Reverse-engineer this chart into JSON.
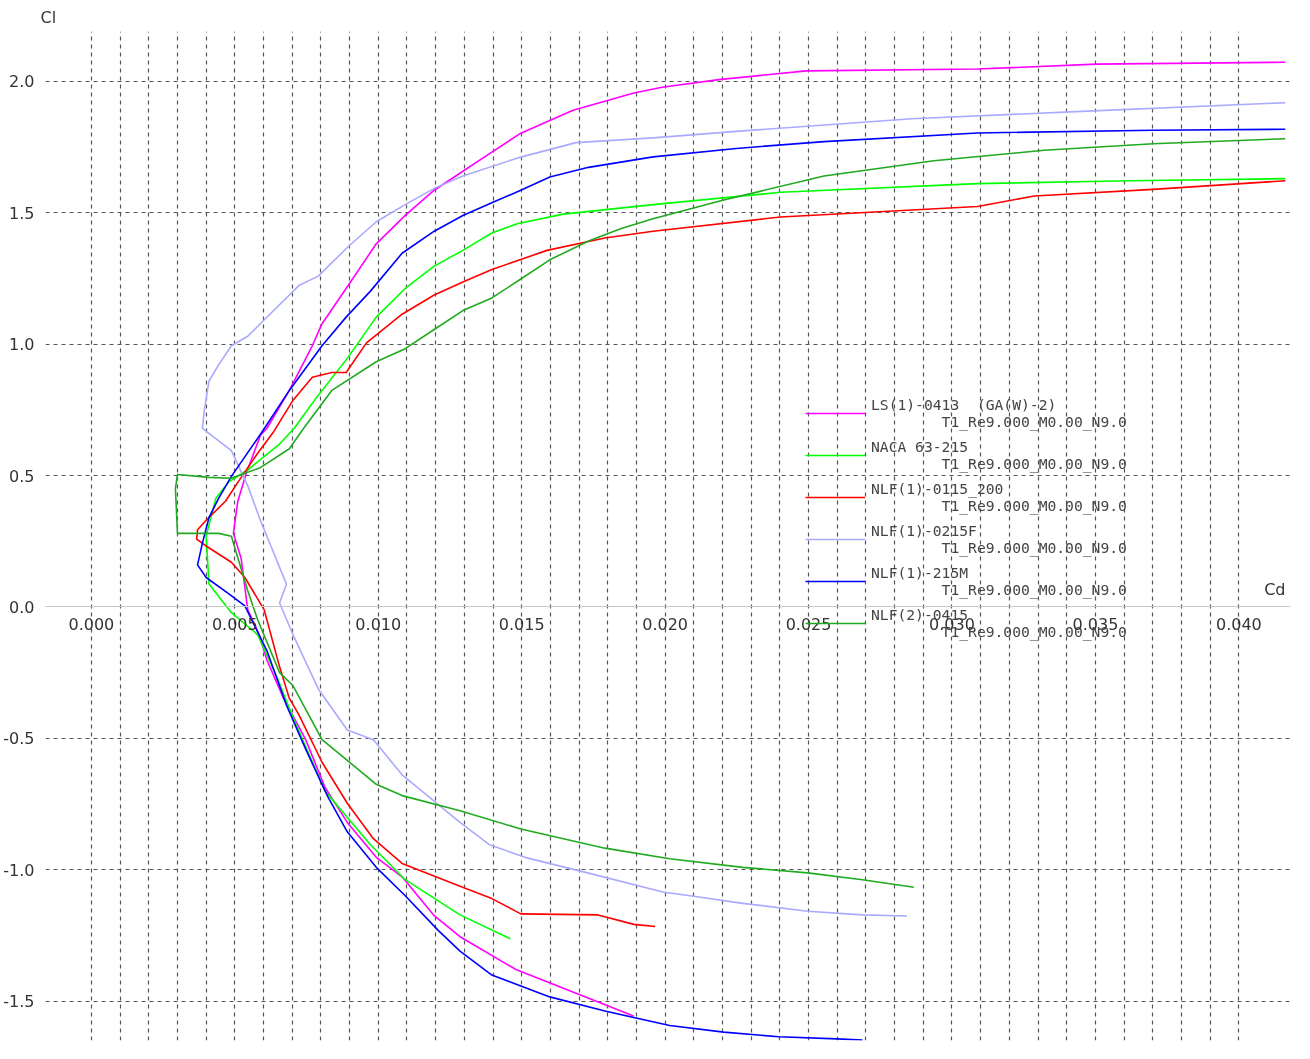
{
  "chart_data": {
    "type": "line",
    "xlabel": "Cd",
    "ylabel": "Cl",
    "xlim": [
      -0.0016,
      0.0418
    ],
    "ylim": [
      -1.65,
      2.19
    ],
    "xticks": [
      {
        "value": 0.0,
        "label": "0.000"
      },
      {
        "value": 0.001,
        "label": null
      },
      {
        "value": 0.002,
        "label": null
      },
      {
        "value": 0.003,
        "label": null
      },
      {
        "value": 0.004,
        "label": null
      },
      {
        "value": 0.005,
        "label": "0.005"
      },
      {
        "value": 0.006,
        "label": null
      },
      {
        "value": 0.007,
        "label": null
      },
      {
        "value": 0.008,
        "label": null
      },
      {
        "value": 0.009,
        "label": null
      },
      {
        "value": 0.01,
        "label": "0.010"
      },
      {
        "value": 0.011,
        "label": null
      },
      {
        "value": 0.012,
        "label": null
      },
      {
        "value": 0.013,
        "label": null
      },
      {
        "value": 0.014,
        "label": null
      },
      {
        "value": 0.015,
        "label": "0.015"
      },
      {
        "value": 0.016,
        "label": null
      },
      {
        "value": 0.017,
        "label": null
      },
      {
        "value": 0.018,
        "label": null
      },
      {
        "value": 0.019,
        "label": null
      },
      {
        "value": 0.02,
        "label": "0.020"
      },
      {
        "value": 0.021,
        "label": null
      },
      {
        "value": 0.022,
        "label": null
      },
      {
        "value": 0.023,
        "label": null
      },
      {
        "value": 0.024,
        "label": null
      },
      {
        "value": 0.025,
        "label": "0.025"
      },
      {
        "value": 0.026,
        "label": null
      },
      {
        "value": 0.027,
        "label": null
      },
      {
        "value": 0.028,
        "label": null
      },
      {
        "value": 0.029,
        "label": null
      },
      {
        "value": 0.03,
        "label": "0.030"
      },
      {
        "value": 0.031,
        "label": null
      },
      {
        "value": 0.032,
        "label": null
      },
      {
        "value": 0.033,
        "label": null
      },
      {
        "value": 0.034,
        "label": null
      },
      {
        "value": 0.035,
        "label": "0.035"
      },
      {
        "value": 0.036,
        "label": null
      },
      {
        "value": 0.037,
        "label": null
      },
      {
        "value": 0.038,
        "label": null
      },
      {
        "value": 0.039,
        "label": null
      },
      {
        "value": 0.04,
        "label": "0.040"
      }
    ],
    "yticks": [
      {
        "value": -1.5,
        "label": "-1.5"
      },
      {
        "value": -1.0,
        "label": "-1.0"
      },
      {
        "value": -0.5,
        "label": "-0.5"
      },
      {
        "value": 0.0,
        "label": "0.0"
      },
      {
        "value": 0.5,
        "label": "0.5"
      },
      {
        "value": 1.0,
        "label": "1.0"
      },
      {
        "value": 1.5,
        "label": "1.5"
      },
      {
        "value": 2.0,
        "label": "2.0"
      }
    ],
    "grid": true,
    "legend": "right",
    "line_style": "solid",
    "series": [
      {
        "name": "LS(1)-0413  (GA(W)-2)\n        T1_Re9.000_M0.00_N9.0",
        "color": "#ff00ff",
        "x": [
          0.0189,
          0.0148,
          0.01285,
          0.01195,
          0.01083,
          0.00993,
          0.00892,
          0.00814,
          0.00747,
          0.0067,
          0.00612,
          0.00585,
          0.00545,
          0.00522,
          0.00495,
          0.0051,
          0.0054,
          0.0059,
          0.00612,
          0.0069,
          0.0077,
          0.00804,
          0.00888,
          0.00993,
          0.01094,
          0.01195,
          0.01295,
          0.01396,
          0.01497,
          0.01679,
          0.01891,
          0.01989,
          0.02187,
          0.02493,
          0.03089,
          0.03503,
          0.04162
        ],
        "values": [
          -1.557,
          -1.38,
          -1.255,
          -1.175,
          -1.027,
          -0.953,
          -0.82,
          -0.686,
          -0.505,
          -0.348,
          -0.203,
          -0.106,
          -0.01,
          0.185,
          0.28,
          0.4,
          0.51,
          0.655,
          0.68,
          0.824,
          0.994,
          1.078,
          1.212,
          1.382,
          1.49,
          1.586,
          1.658,
          1.731,
          1.803,
          1.89,
          1.956,
          1.978,
          2.007,
          2.04,
          2.047,
          2.066,
          2.073
        ]
      },
      {
        "name": "NACA 63-215\n        T1_Re9.000_M0.00_N9.0",
        "color": "#00ff00",
        "x": [
          0.0146,
          0.01285,
          0.01094,
          0.00972,
          0.00814,
          0.00703,
          0.00646,
          0.00579,
          0.00488,
          0.0041,
          0.004,
          0.00434,
          0.00478,
          0.00545,
          0.00656,
          0.00707,
          0.0078,
          0.00892,
          0.00993,
          0.01094,
          0.01195,
          0.01295,
          0.01396,
          0.01487,
          0.01645,
          0.01958,
          0.02402,
          0.03089,
          0.03624,
          0.04162
        ],
        "values": [
          -1.263,
          -1.172,
          -1.038,
          -0.904,
          -0.7,
          -0.421,
          -0.265,
          -0.105,
          -0.022,
          0.087,
          0.27,
          0.414,
          0.475,
          0.522,
          0.62,
          0.68,
          0.79,
          0.946,
          1.103,
          1.212,
          1.297,
          1.357,
          1.423,
          1.459,
          1.495,
          1.531,
          1.578,
          1.611,
          1.622,
          1.63
        ]
      },
      {
        "name": "NLF(1)-0115_200\n        T1_Re9.000_M0.00_N9.0",
        "color": "#ff0000",
        "x": [
          0.01965,
          0.01891,
          0.01766,
          0.01497,
          0.01396,
          0.01285,
          0.01083,
          0.00983,
          0.00892,
          0.00804,
          0.00723,
          0.0069,
          0.00656,
          0.00602,
          0.00535,
          0.00488,
          0.004,
          0.00367,
          0.0037,
          0.004,
          0.00468,
          0.00511,
          0.00579,
          0.00636,
          0.00703,
          0.0077,
          0.00838,
          0.00888,
          0.00959,
          0.01083,
          0.01195,
          0.01295,
          0.01396,
          0.01588,
          0.0179,
          0.01958,
          0.02402,
          0.03089,
          0.03287,
          0.03701,
          0.04162
        ],
        "values": [
          -1.216,
          -1.208,
          -1.172,
          -1.168,
          -1.11,
          -1.063,
          -0.976,
          -0.882,
          -0.747,
          -0.591,
          -0.41,
          -0.348,
          -0.228,
          -0.01,
          0.112,
          0.17,
          0.232,
          0.258,
          0.294,
          0.33,
          0.403,
          0.475,
          0.584,
          0.668,
          0.787,
          0.874,
          0.892,
          0.892,
          1.005,
          1.114,
          1.187,
          1.237,
          1.284,
          1.357,
          1.404,
          1.43,
          1.484,
          1.524,
          1.564,
          1.589,
          1.622
        ]
      },
      {
        "name": "NLF(1)-0215F\n        T1_Re9.000_M0.00_N9.0",
        "color": "#aaaaff",
        "x": [
          0.02843,
          0.02688,
          0.02497,
          0.02271,
          0.02093,
          0.01992,
          0.01733,
          0.01511,
          0.01386,
          0.01285,
          0.01083,
          0.00983,
          0.00892,
          0.00791,
          0.00703,
          0.00656,
          0.0068,
          0.00589,
          0.00545,
          0.00488,
          0.00387,
          0.00394,
          0.0041,
          0.00444,
          0.00488,
          0.00545,
          0.00602,
          0.00723,
          0.00791,
          0.00892,
          0.00993,
          0.01094,
          0.01195,
          0.01295,
          0.01487,
          0.01689,
          0.01958,
          0.02248,
          0.0286,
          0.03472,
          0.04162
        ],
        "values": [
          -1.176,
          -1.172,
          -1.158,
          -1.128,
          -1.1,
          -1.085,
          -1.013,
          -0.953,
          -0.904,
          -0.82,
          -0.639,
          -0.505,
          -0.468,
          -0.312,
          -0.106,
          0.015,
          0.087,
          0.33,
          0.461,
          0.595,
          0.68,
          0.751,
          0.86,
          0.922,
          0.994,
          1.03,
          1.092,
          1.223,
          1.259,
          1.368,
          1.466,
          1.531,
          1.593,
          1.64,
          1.709,
          1.767,
          1.785,
          1.81,
          1.858,
          1.887,
          1.919
        ]
      },
      {
        "name": "NLF(1)-215M\n        T1_Re9.000_M0.00_N9.0",
        "color": "#0000ff",
        "x": [
          0.02688,
          0.02598,
          0.02396,
          0.02204,
          0.02016,
          0.0179,
          0.01598,
          0.01396,
          0.01285,
          0.01208,
          0.01094,
          0.00993,
          0.00892,
          0.00824,
          0.00747,
          0.0068,
          0.00612,
          0.00535,
          0.00478,
          0.004,
          0.0037,
          0.00387,
          0.0041,
          0.00444,
          0.00488,
          0.00596,
          0.0069,
          0.00804,
          0.00888,
          0.00972,
          0.01083,
          0.01195,
          0.01295,
          0.01396,
          0.01497,
          0.01598,
          0.01733,
          0.01958,
          0.02248,
          0.02554,
          0.03089,
          0.03701,
          0.04162
        ],
        "values": [
          -1.648,
          -1.644,
          -1.636,
          -1.618,
          -1.593,
          -1.538,
          -1.484,
          -1.401,
          -1.31,
          -1.23,
          -1.099,
          -0.991,
          -0.856,
          -0.722,
          -0.541,
          -0.374,
          -0.167,
          0.004,
          0.051,
          0.112,
          0.16,
          0.243,
          0.341,
          0.414,
          0.497,
          0.668,
          0.824,
          0.994,
          1.103,
          1.201,
          1.346,
          1.43,
          1.49,
          1.538,
          1.586,
          1.636,
          1.673,
          1.713,
          1.745,
          1.771,
          1.804,
          1.814,
          1.818
        ]
      },
      {
        "name": "NLF(2)-0415\n        T1_Re9.000_M0.00_N9.0",
        "color": "#1faa1f",
        "x": [
          0.02867,
          0.02688,
          0.02497,
          0.02271,
          0.02016,
          0.0179,
          0.01497,
          0.01285,
          0.01083,
          0.00993,
          0.00892,
          0.00804,
          0.00703,
          0.00656,
          0.00579,
          0.00545,
          0.00488,
          0.00444,
          0.003,
          0.00293,
          0.003,
          0.0041,
          0.00488,
          0.00589,
          0.0069,
          0.0074,
          0.00838,
          0.00993,
          0.01094,
          0.01195,
          0.01295,
          0.01396,
          0.01497,
          0.01598,
          0.01733,
          0.01847,
          0.01958,
          0.02204,
          0.02554,
          0.02937,
          0.03321,
          0.03701,
          0.04162
        ],
        "values": [
          -1.067,
          -1.038,
          -1.012,
          -0.991,
          -0.958,
          -0.918,
          -0.845,
          -0.776,
          -0.718,
          -0.675,
          -0.584,
          -0.505,
          -0.3,
          -0.25,
          -0.047,
          0.062,
          0.269,
          0.28,
          0.28,
          0.45,
          0.504,
          0.493,
          0.49,
          0.53,
          0.602,
          0.68,
          0.824,
          0.933,
          0.983,
          1.056,
          1.128,
          1.176,
          1.248,
          1.321,
          1.393,
          1.44,
          1.477,
          1.549,
          1.64,
          1.698,
          1.738,
          1.763,
          1.782
        ]
      }
    ]
  }
}
